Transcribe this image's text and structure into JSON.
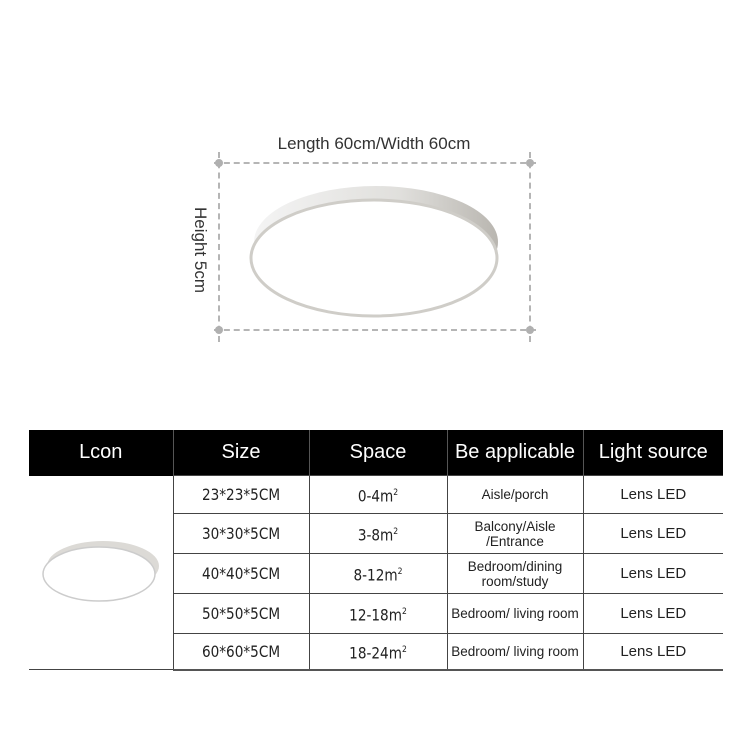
{
  "dimensions": {
    "length_width_label": "Length 60cm/Width 60cm",
    "height_label": "Height 5cm"
  },
  "table": {
    "headers": [
      "Lcon",
      "Size",
      "Space",
      "Be applicable",
      "Light source"
    ],
    "rows": [
      {
        "size": "23*23*5CM",
        "space": "0-4m",
        "applicable": "Aisle/porch",
        "light_source": "Lens LED"
      },
      {
        "size": "30*30*5CM",
        "space": "3-8m",
        "applicable": "Balcony/Aisle /Entrance",
        "light_source": "Lens LED"
      },
      {
        "size": "40*40*5CM",
        "space": "8-12m",
        "applicable": "Bedroom/dining room/study",
        "light_source": "Lens LED"
      },
      {
        "size": "50*50*5CM",
        "space": "12-18m",
        "applicable": "Bedroom/ living room",
        "light_source": "Lens LED"
      },
      {
        "size": "60*60*5CM",
        "space": "18-24m",
        "applicable": "Bedroom/ living room",
        "light_source": "Lens LED"
      }
    ],
    "area_unit_superscript": "2"
  },
  "colors": {
    "header_bg": "#000000",
    "dimension_line": "#b5b5b5"
  }
}
